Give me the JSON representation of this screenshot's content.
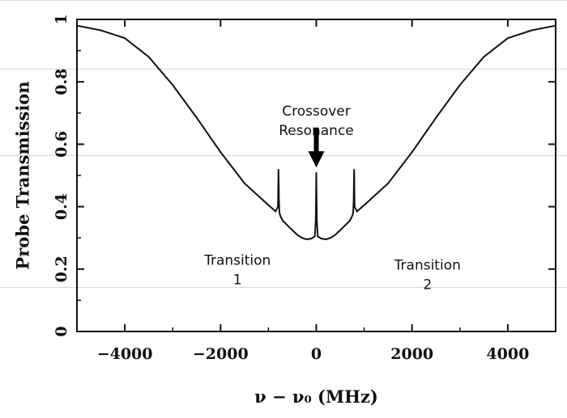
{
  "chart_data": {
    "type": "line",
    "title": "",
    "xlabel": "ν − ν₀ (MHz)",
    "ylabel": "Probe Transmission",
    "xlim": [
      -5000,
      5000
    ],
    "ylim": [
      0,
      1
    ],
    "x_ticks": [
      -4000,
      -2000,
      0,
      2000,
      4000
    ],
    "x_tick_labels": [
      "−4000",
      "−2000",
      "0",
      "2000",
      "4000"
    ],
    "y_ticks": [
      0,
      0.2,
      0.4,
      0.6,
      0.8,
      1
    ],
    "y_tick_labels": [
      "0",
      "0.2",
      "0.4",
      "0.6",
      "0.8",
      "1"
    ],
    "grid": false,
    "series": [
      {
        "x": [
          -5000,
          -4500,
          -4000,
          -3500,
          -3000,
          -2500,
          -2000,
          -1500,
          -1000,
          -850,
          -800,
          -790,
          -780,
          -770,
          -750,
          -700,
          -600,
          -500,
          -400,
          -300,
          -200,
          -100,
          -30,
          -10,
          0,
          10,
          30,
          100,
          200,
          300,
          400,
          500,
          600,
          700,
          750,
          770,
          780,
          790,
          800,
          850,
          1000,
          1500,
          2000,
          2500,
          3000,
          3500,
          4000,
          4500,
          5000
        ],
        "y": [
          0.98,
          0.965,
          0.94,
          0.88,
          0.79,
          0.685,
          0.575,
          0.475,
          0.405,
          0.385,
          0.4,
          0.52,
          0.42,
          0.38,
          0.37,
          0.355,
          0.34,
          0.325,
          0.31,
          0.3,
          0.295,
          0.298,
          0.305,
          0.36,
          0.51,
          0.36,
          0.305,
          0.298,
          0.295,
          0.3,
          0.31,
          0.325,
          0.34,
          0.355,
          0.37,
          0.38,
          0.42,
          0.52,
          0.4,
          0.385,
          0.405,
          0.475,
          0.575,
          0.685,
          0.79,
          0.88,
          0.94,
          0.965,
          0.98
        ]
      }
    ],
    "annotations": [
      {
        "lines": [
          "Transition",
          "1"
        ],
        "x": -800,
        "y": 0.52
      },
      {
        "lines": [
          "Crossover",
          "Resonance"
        ],
        "x": 0,
        "y": 0.51,
        "arrow": true
      },
      {
        "lines": [
          "Transition",
          "2"
        ],
        "x": 800,
        "y": 0.52
      }
    ]
  }
}
